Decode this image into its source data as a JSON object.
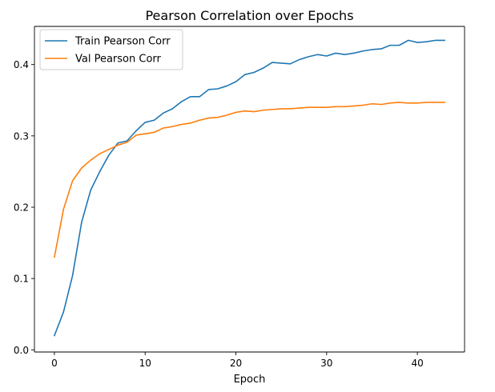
{
  "chart_data": {
    "type": "line",
    "title": "Pearson Correlation over Epochs",
    "xlabel": "Epoch",
    "ylabel": "",
    "xlim": [
      -2.2,
      45.2
    ],
    "ylim": [
      -0.003,
      0.4535
    ],
    "xticks": [
      0,
      10,
      20,
      30,
      40
    ],
    "xtick_labels": [
      "0",
      "10",
      "20",
      "30",
      "40"
    ],
    "yticks": [
      0.0,
      0.1,
      0.2,
      0.3,
      0.4
    ],
    "ytick_labels": [
      "0.0",
      "0.1",
      "0.2",
      "0.3",
      "0.4"
    ],
    "grid": false,
    "legend_position": "top-left",
    "x": [
      0,
      1,
      2,
      3,
      4,
      5,
      6,
      7,
      8,
      9,
      10,
      11,
      12,
      13,
      14,
      15,
      16,
      17,
      18,
      19,
      20,
      21,
      22,
      23,
      24,
      25,
      26,
      27,
      28,
      29,
      30,
      31,
      32,
      33,
      34,
      35,
      36,
      37,
      38,
      39,
      40,
      41,
      42,
      43
    ],
    "series": [
      {
        "name": "Train Pearson Corr",
        "color": "#1f77b4",
        "values": [
          0.02,
          0.053,
          0.104,
          0.179,
          0.224,
          0.25,
          0.273,
          0.29,
          0.293,
          0.307,
          0.319,
          0.322,
          0.332,
          0.338,
          0.348,
          0.355,
          0.355,
          0.365,
          0.366,
          0.37,
          0.376,
          0.386,
          0.389,
          0.395,
          0.403,
          0.402,
          0.401,
          0.407,
          0.411,
          0.414,
          0.412,
          0.416,
          0.414,
          0.416,
          0.419,
          0.421,
          0.422,
          0.427,
          0.427,
          0.434,
          0.431,
          0.432,
          0.434,
          0.434
        ]
      },
      {
        "name": "Val Pearson Corr",
        "color": "#ff7f0e",
        "values": [
          0.13,
          0.197,
          0.237,
          0.255,
          0.266,
          0.275,
          0.281,
          0.287,
          0.291,
          0.301,
          0.303,
          0.305,
          0.311,
          0.313,
          0.316,
          0.318,
          0.322,
          0.325,
          0.326,
          0.329,
          0.333,
          0.335,
          0.334,
          0.336,
          0.337,
          0.338,
          0.338,
          0.339,
          0.34,
          0.34,
          0.34,
          0.341,
          0.341,
          0.342,
          0.343,
          0.345,
          0.344,
          0.346,
          0.347,
          0.346,
          0.346,
          0.347,
          0.347,
          0.347
        ]
      }
    ]
  }
}
